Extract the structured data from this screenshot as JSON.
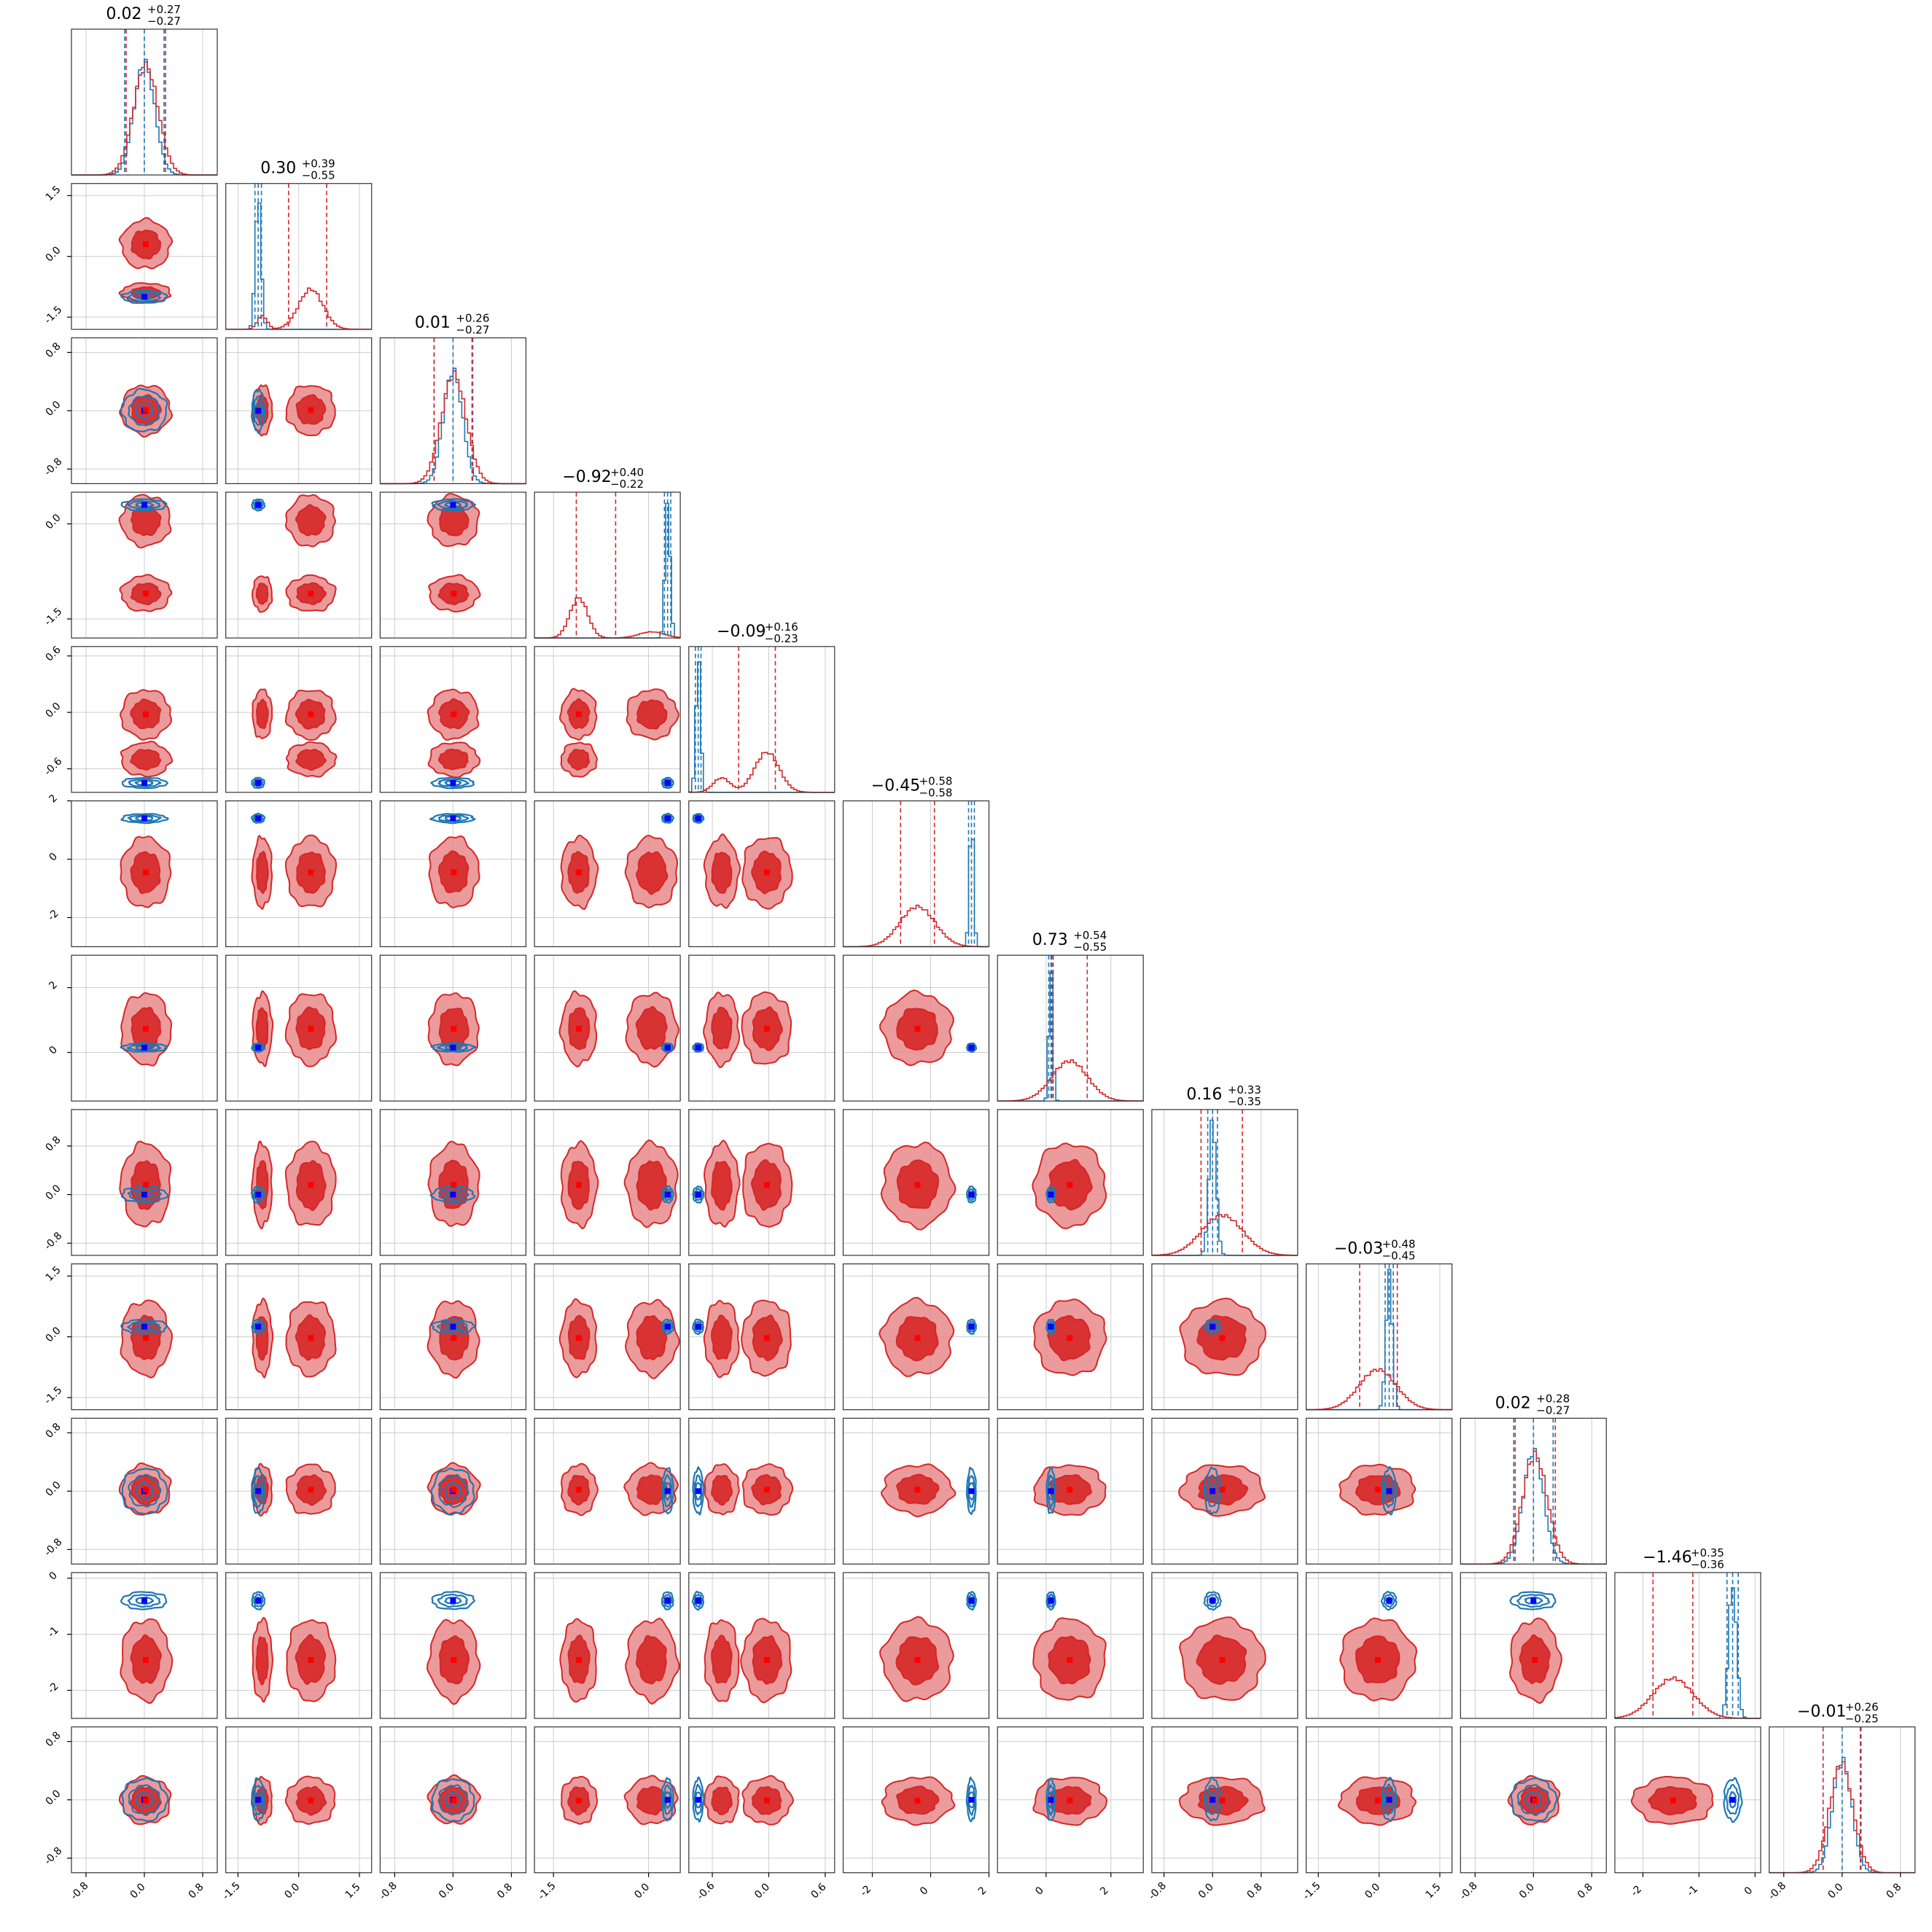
{
  "chart_data": {
    "type": "corner",
    "n_params": 12,
    "series": [
      {
        "name": "",
        "color": "#d62728"
      },
      {
        "name": "",
        "color": "#1f77b4"
      }
    ],
    "colors": {
      "red": "#d62728",
      "red_fill": "#e88a8a",
      "blue": "#1f77b4",
      "truth_blue": "#0000ff",
      "truth_red": "#ff0000"
    },
    "grid": true,
    "params": [
      {
        "range": [
          -1.0,
          1.0
        ],
        "ticks": [
          -0.8,
          0.0,
          0.8
        ],
        "tick_labels": [
          "-0.8",
          "0.0",
          "0.8"
        ],
        "title": {
          "value": "0.02",
          "plus": "+0.27",
          "minus": "−0.27"
        },
        "red": {
          "mode": [
            0.02
          ],
          "sd": [
            0.17
          ],
          "w": [
            1
          ]
        },
        "blue": {
          "mean": 0.0,
          "sd": 0.14
        },
        "q_red": [
          -0.25,
          0.02,
          0.29
        ],
        "q_blue": [
          -0.27,
          0.0,
          0.27
        ]
      },
      {
        "range": [
          -1.8,
          1.8
        ],
        "ticks": [
          -1.5,
          0.0,
          1.5
        ],
        "tick_labels": [
          "-1.5",
          "0.0",
          "1.5"
        ],
        "title": {
          "value": "0.30",
          "plus": "+0.39",
          "minus": "−0.55"
        },
        "red": {
          "mode": [
            0.3,
            -0.9
          ],
          "sd": [
            0.3,
            0.12
          ],
          "w": [
            0.88,
            0.12
          ]
        },
        "blue": {
          "mean": -1.0,
          "sd": 0.07
        },
        "q_red": [
          -0.25,
          0.3,
          0.69
        ],
        "q_blue": [
          -1.08,
          -1.0,
          -0.92
        ]
      },
      {
        "range": [
          -1.0,
          1.0
        ],
        "ticks": [
          -0.8,
          0.0,
          0.8
        ],
        "tick_labels": [
          "-0.8",
          "0.0",
          "0.8"
        ],
        "title": {
          "value": "0.01",
          "plus": "+0.26",
          "minus": "−0.27"
        },
        "red": {
          "mode": [
            0.01
          ],
          "sd": [
            0.17
          ],
          "w": [
            1
          ]
        },
        "blue": {
          "mean": 0.0,
          "sd": 0.13
        },
        "q_red": [
          -0.26,
          0.01,
          0.27
        ],
        "q_blue": [
          -0.26,
          0.0,
          0.26
        ]
      },
      {
        "range": [
          -1.8,
          0.5
        ],
        "ticks": [
          -1.5,
          0.0
        ],
        "tick_labels": [
          "-1.5",
          "0.0"
        ],
        "title": {
          "value": "−0.92",
          "plus": "+0.40",
          "minus": "−0.22"
        },
        "red": {
          "mode": [
            -1.1,
            0.05
          ],
          "sd": [
            0.14,
            0.2
          ],
          "w": [
            0.82,
            0.18
          ]
        },
        "blue": {
          "mean": 0.3,
          "sd": 0.04
        },
        "q_red": [
          -1.14,
          -0.92,
          -0.52
        ],
        "q_blue": [
          0.25,
          0.3,
          0.35
        ]
      },
      {
        "range": [
          -0.85,
          0.7
        ],
        "ticks": [
          -0.6,
          0.0,
          0.6
        ],
        "tick_labels": [
          "-0.6",
          "0.0",
          "0.6"
        ],
        "title": {
          "value": "−0.09",
          "plus": "+0.16",
          "minus": "−0.23"
        },
        "red": {
          "mode": [
            -0.02,
            -0.5
          ],
          "sd": [
            0.13,
            0.09
          ],
          "w": [
            0.8,
            0.2
          ]
        },
        "blue": {
          "mean": -0.75,
          "sd": 0.025
        },
        "q_red": [
          -0.32,
          -0.09,
          0.07
        ],
        "q_blue": [
          -0.78,
          -0.75,
          -0.72
        ]
      },
      {
        "range": [
          -3.0,
          2.0
        ],
        "ticks": [
          -2,
          0,
          2
        ],
        "tick_labels": [
          "-2",
          "0",
          "2"
        ],
        "title": {
          "value": "−0.45",
          "plus": "+0.58",
          "minus": "−0.58"
        },
        "red": {
          "mode": [
            -0.45
          ],
          "sd": [
            0.6
          ],
          "w": [
            1
          ]
        },
        "blue": {
          "mean": 1.4,
          "sd": 0.07
        },
        "q_red": [
          -1.03,
          -0.45,
          0.13
        ],
        "q_blue": [
          1.3,
          1.4,
          1.5
        ]
      },
      {
        "range": [
          -1.5,
          3.0
        ],
        "ticks": [
          0,
          2
        ],
        "tick_labels": [
          "0",
          "2"
        ],
        "title": {
          "value": "0.73",
          "plus": "+0.54",
          "minus": "−0.55"
        },
        "red": {
          "mode": [
            0.73
          ],
          "sd": [
            0.55
          ],
          "w": [
            1
          ]
        },
        "blue": {
          "mean": 0.15,
          "sd": 0.06
        },
        "q_red": [
          0.18,
          0.73,
          1.27
        ],
        "q_blue": [
          0.08,
          0.15,
          0.22
        ]
      },
      {
        "range": [
          -1.0,
          1.4
        ],
        "ticks": [
          -0.8,
          0.0,
          0.8
        ],
        "tick_labels": [
          "-0.8",
          "0.0",
          "0.8"
        ],
        "title": {
          "value": "0.16",
          "plus": "+0.33",
          "minus": "−0.35"
        },
        "red": {
          "mode": [
            0.16
          ],
          "sd": [
            0.34
          ],
          "w": [
            1
          ]
        },
        "blue": {
          "mean": 0.0,
          "sd": 0.06
        },
        "q_red": [
          -0.19,
          0.16,
          0.49
        ],
        "q_blue": [
          -0.08,
          0.0,
          0.08
        ]
      },
      {
        "range": [
          -1.8,
          1.8
        ],
        "ticks": [
          -1.5,
          0.0,
          1.5
        ],
        "tick_labels": [
          "-1.5",
          "0.0",
          "1.5"
        ],
        "title": {
          "value": "−0.03",
          "plus": "+0.48",
          "minus": "−0.45"
        },
        "red": {
          "mode": [
            -0.03
          ],
          "sd": [
            0.46
          ],
          "w": [
            1
          ]
        },
        "blue": {
          "mean": 0.25,
          "sd": 0.08
        },
        "q_red": [
          -0.48,
          -0.03,
          0.45
        ],
        "q_blue": [
          0.15,
          0.25,
          0.35
        ]
      },
      {
        "range": [
          -1.0,
          1.0
        ],
        "ticks": [
          -0.8,
          0.0,
          0.8
        ],
        "tick_labels": [
          "-0.8",
          "0.0",
          "0.8"
        ],
        "title": {
          "value": "0.02",
          "plus": "+0.28",
          "minus": "−0.27"
        },
        "red": {
          "mode": [
            0.02
          ],
          "sd": [
            0.17
          ],
          "w": [
            1
          ]
        },
        "blue": {
          "mean": 0.0,
          "sd": 0.14
        },
        "q_red": [
          -0.25,
          0.02,
          0.3
        ],
        "q_blue": [
          -0.27,
          0.0,
          0.27
        ]
      },
      {
        "range": [
          -2.5,
          0.1
        ],
        "ticks": [
          -2,
          -1,
          0
        ],
        "tick_labels": [
          "-2",
          "-1",
          "0"
        ],
        "title": {
          "value": "−1.46",
          "plus": "+0.35",
          "minus": "−0.36"
        },
        "red": {
          "mode": [
            -1.46
          ],
          "sd": [
            0.36
          ],
          "w": [
            1
          ]
        },
        "blue": {
          "mean": -0.4,
          "sd": 0.07
        },
        "q_red": [
          -1.82,
          -1.46,
          -1.11
        ],
        "q_blue": [
          -0.5,
          -0.4,
          -0.3
        ]
      },
      {
        "range": [
          -1.0,
          1.0
        ],
        "ticks": [
          -0.8,
          0.0,
          0.8
        ],
        "tick_labels": [
          "-0.8",
          "0.0",
          "0.8"
        ],
        "title": {
          "value": "−0.01",
          "plus": "+0.26",
          "minus": "−0.25"
        },
        "red": {
          "mode": [
            -0.01
          ],
          "sd": [
            0.16
          ],
          "w": [
            1
          ]
        },
        "blue": {
          "mean": 0.0,
          "sd": 0.13
        },
        "q_red": [
          -0.26,
          -0.01,
          0.25
        ],
        "q_blue": [
          -0.26,
          0.0,
          0.26
        ]
      }
    ]
  }
}
